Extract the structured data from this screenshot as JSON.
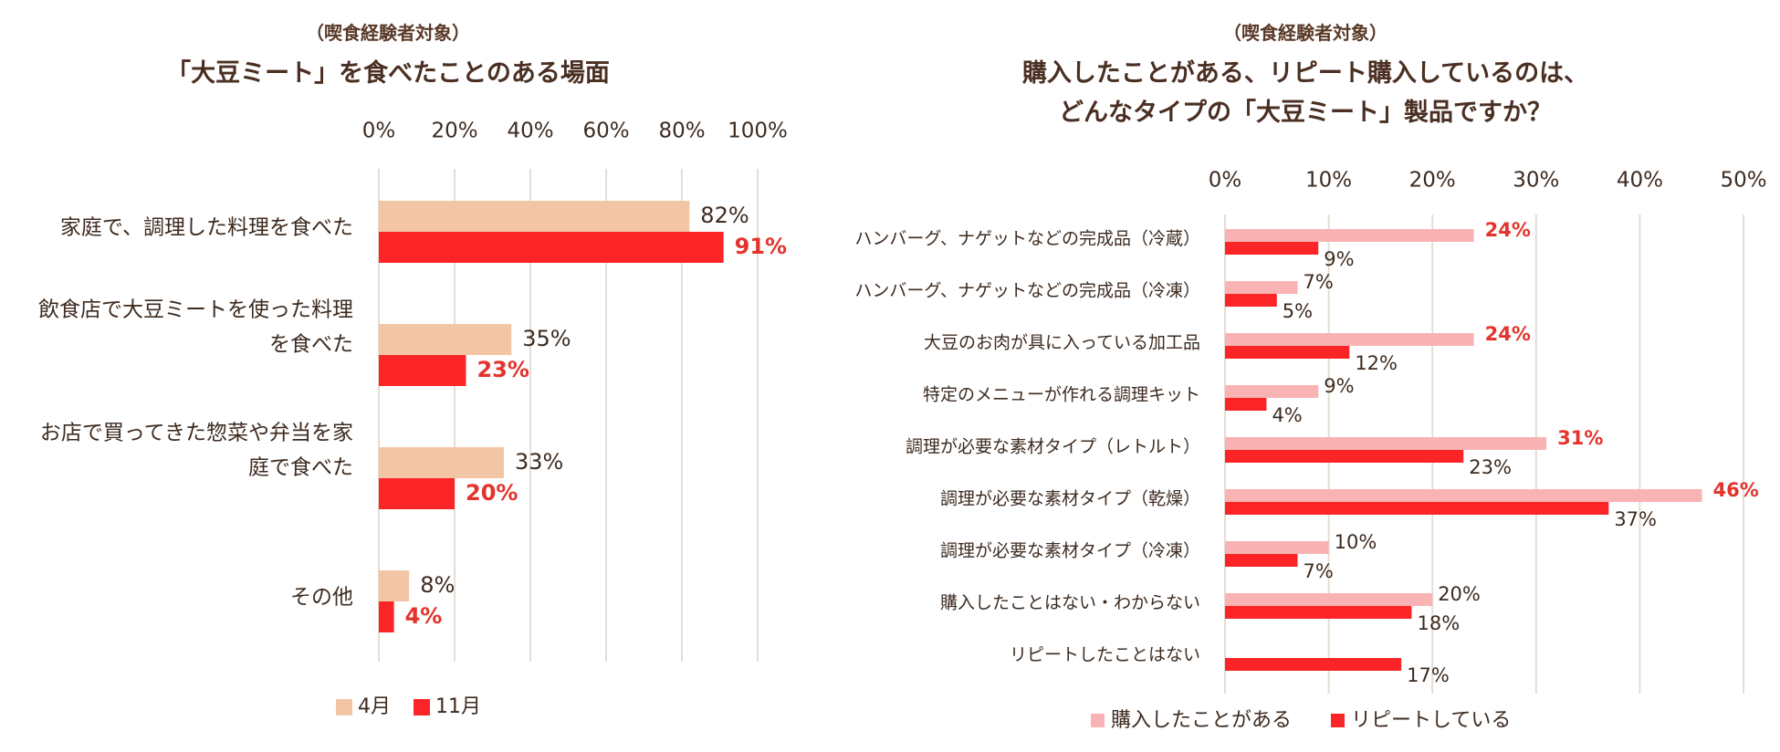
{
  "chart_data": [
    {
      "type": "bar",
      "orientation": "horizontal",
      "subtitle": "（喫食経験者対象）",
      "title": "「大豆ミート」を食べたことのある場面",
      "categories": [
        [
          "家庭で、調理した料理を食べた"
        ],
        [
          "飲食店で大豆ミートを使った料理",
          "を食べた"
        ],
        [
          "お店で買ってきた惣菜や弁当を家",
          "庭で食べた"
        ],
        [
          "その他"
        ]
      ],
      "series": [
        {
          "name": "4月",
          "color": "#f2c6a5",
          "values": [
            82,
            35,
            33,
            8
          ],
          "labels": [
            "82%",
            "35%",
            "33%",
            "8%"
          ],
          "highlight": false
        },
        {
          "name": "11月",
          "color": "#fb2527",
          "values": [
            91,
            23,
            20,
            4
          ],
          "labels": [
            "91%",
            "23%",
            "20%",
            "4%"
          ],
          "highlight": true
        }
      ],
      "ticks": [
        "0%",
        "20%",
        "40%",
        "60%",
        "80%",
        "100%"
      ],
      "xlim": [
        0,
        100
      ],
      "legend_position": "bottom"
    },
    {
      "type": "bar",
      "orientation": "horizontal",
      "subtitle": "（喫食経験者対象）",
      "title": [
        "購入したことがある、リピート購入しているのは、",
        "どんなタイプの「大豆ミート」製品ですか？"
      ],
      "categories": [
        "ハンバーグ、ナゲットなどの完成品（冷蔵）",
        "ハンバーグ、ナゲットなどの完成品（冷凍）",
        "大豆のお肉が具に入っている加工品",
        "特定のメニューが作れる調理キット",
        "調理が必要な素材タイプ（レトルト）",
        "調理が必要な素材タイプ（乾燥）",
        "調理が必要な素材タイプ（冷凍）",
        "購入したことはない・わからない",
        "リピートしたことはない"
      ],
      "series": [
        {
          "name": "購入したことがある",
          "color": "#f9b3b4",
          "values": [
            24,
            7,
            24,
            9,
            31,
            46,
            10,
            20,
            null
          ],
          "labels": [
            "24%",
            "7%",
            "24%",
            "9%",
            "31%",
            "46%",
            "10%",
            "20%",
            ""
          ],
          "highlight": [
            true,
            false,
            true,
            false,
            true,
            true,
            false,
            false,
            false
          ]
        },
        {
          "name": "リピートしている",
          "color": "#fb2527",
          "values": [
            9,
            5,
            12,
            4,
            23,
            37,
            7,
            18,
            17
          ],
          "labels": [
            "9%",
            "5%",
            "12%",
            "4%",
            "23%",
            "37%",
            "7%",
            "18%",
            "17%"
          ],
          "highlight": [
            false,
            false,
            false,
            false,
            false,
            false,
            false,
            false,
            false
          ]
        }
      ],
      "ticks": [
        "0%",
        "10%",
        "20%",
        "30%",
        "40%",
        "50%"
      ],
      "xlim": [
        0,
        50
      ],
      "legend_position": "bottom"
    }
  ]
}
